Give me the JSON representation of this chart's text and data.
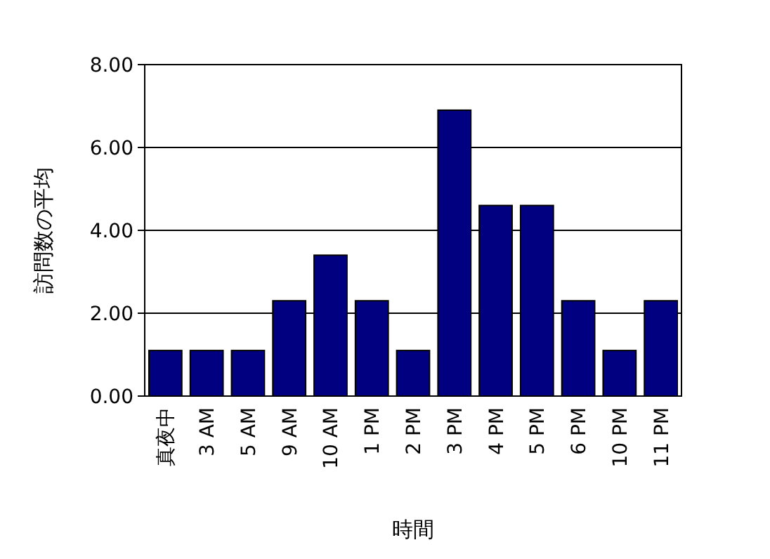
{
  "chart_data": {
    "type": "bar",
    "xlabel": "時間",
    "ylabel": "訪問数の平均",
    "categories": [
      "真夜中",
      "3 AM",
      "5 AM",
      "9 AM",
      "10 AM",
      "1 PM",
      "2 PM",
      "3 PM",
      "4 PM",
      "5 PM",
      "6 PM",
      "10 PM",
      "11 PM"
    ],
    "values": [
      1.1,
      1.1,
      1.1,
      2.3,
      3.4,
      2.3,
      1.1,
      6.9,
      4.6,
      4.6,
      2.3,
      1.1,
      2.3
    ],
    "color": "#000080",
    "ylim": [
      0,
      8
    ],
    "yticks": [
      {
        "value": 0,
        "label": "0.00"
      },
      {
        "value": 2,
        "label": "2.00"
      },
      {
        "value": 4,
        "label": "4.00"
      },
      {
        "value": 6,
        "label": "6.00"
      },
      {
        "value": 8,
        "label": "8.00"
      }
    ],
    "grid": "y"
  }
}
